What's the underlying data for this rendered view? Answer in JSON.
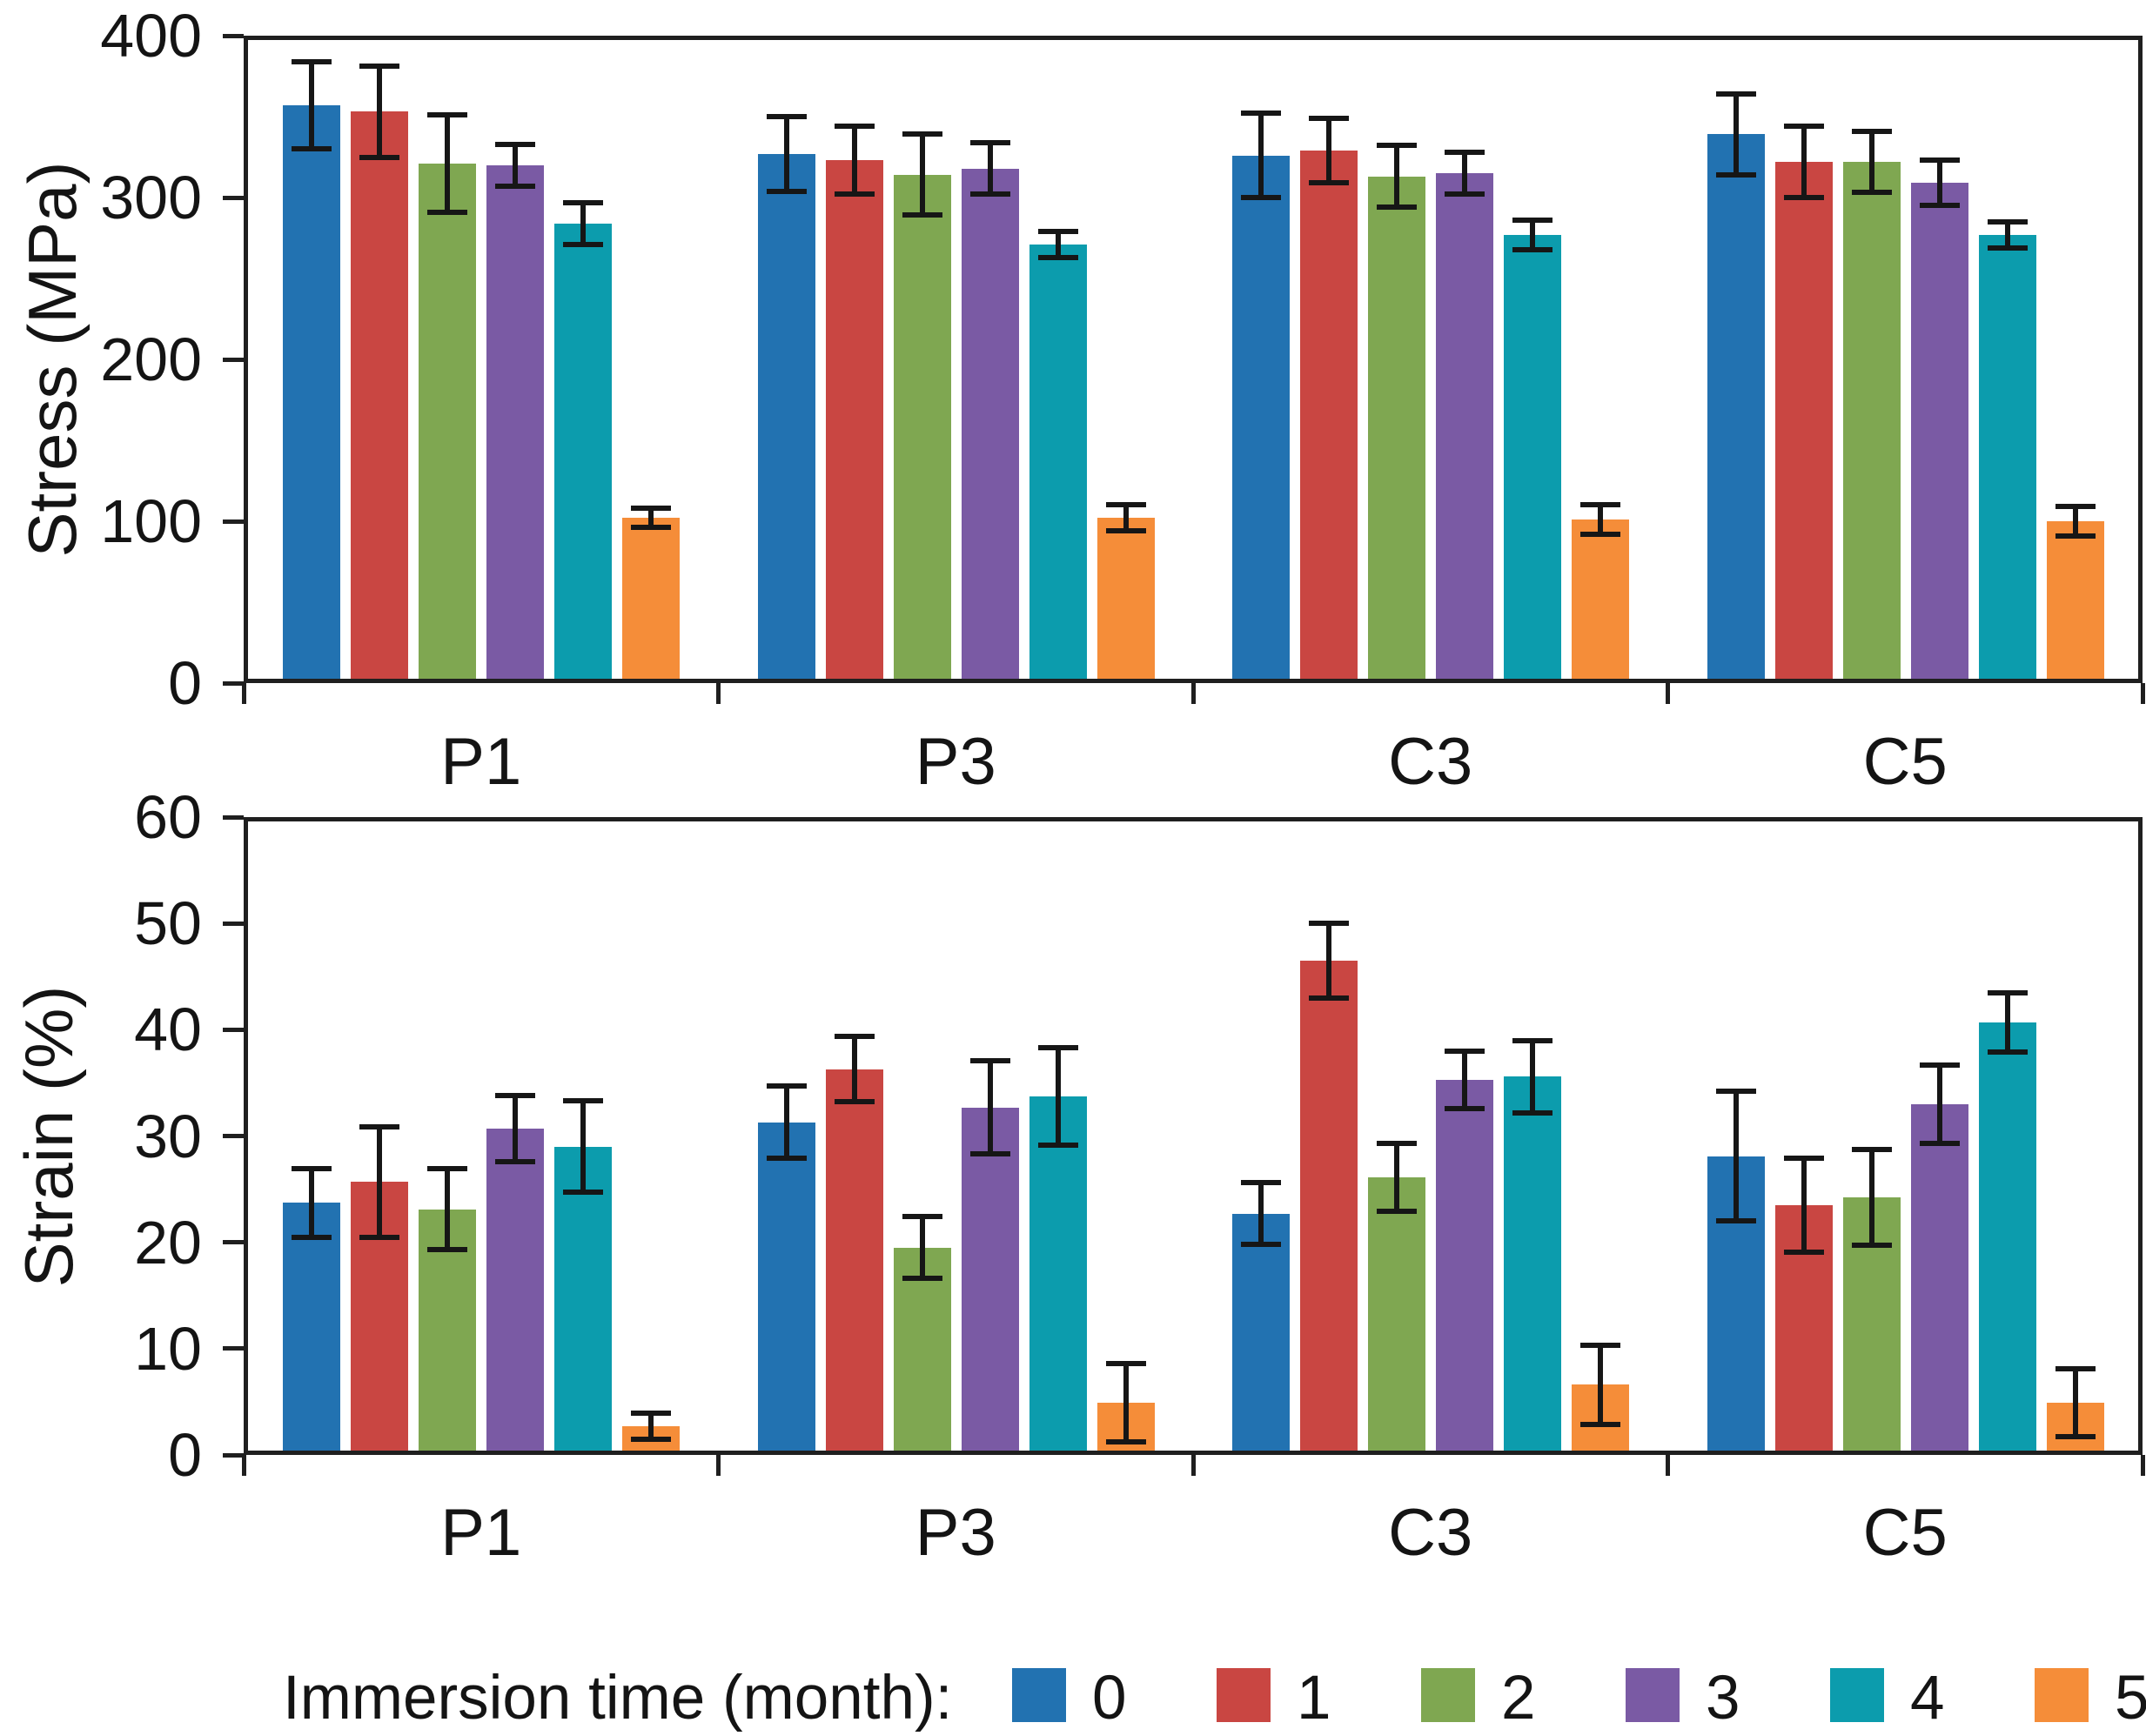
{
  "figure": {
    "background": "#ffffff",
    "axis_color": "#1f1f1f",
    "error_bar_color": "#161616"
  },
  "legend": {
    "title": "Immersion time (month):",
    "entries": [
      {
        "label": "0",
        "color": "#2272B1"
      },
      {
        "label": "1",
        "color": "#C94642"
      },
      {
        "label": "2",
        "color": "#7FA751"
      },
      {
        "label": "3",
        "color": "#7A5AA4"
      },
      {
        "label": "4",
        "color": "#0C9CAD"
      },
      {
        "label": "5",
        "color": "#F58D39"
      }
    ]
  },
  "chart_data": [
    {
      "type": "bar",
      "title": "",
      "xlabel": "",
      "ylabel": "Stress (MPa)",
      "ylim": [
        0,
        400
      ],
      "yticks": [
        0,
        100,
        200,
        300,
        400
      ],
      "grid": false,
      "legend_position": "shared-bottom",
      "categories": [
        "P1",
        "P3",
        "C3",
        "C5"
      ],
      "series": [
        {
          "name": "0",
          "color": "#2272B1",
          "values": [
            357,
            327,
            326,
            339
          ],
          "errors": [
            27,
            23,
            26,
            25
          ]
        },
        {
          "name": "1",
          "color": "#C94642",
          "values": [
            353,
            323,
            329,
            322
          ],
          "errors": [
            28,
            21,
            20,
            22
          ]
        },
        {
          "name": "2",
          "color": "#7FA751",
          "values": [
            321,
            314,
            313,
            322
          ],
          "errors": [
            30,
            25,
            19,
            19
          ]
        },
        {
          "name": "3",
          "color": "#7A5AA4",
          "values": [
            320,
            318,
            315,
            309
          ],
          "errors": [
            13,
            16,
            13,
            14
          ]
        },
        {
          "name": "4",
          "color": "#0C9CAD",
          "values": [
            284,
            271,
            277,
            277
          ],
          "errors": [
            13,
            8,
            9,
            8
          ]
        },
        {
          "name": "5",
          "color": "#F58D39",
          "values": [
            102,
            102,
            101,
            100
          ],
          "errors": [
            6,
            8,
            9,
            9
          ]
        }
      ]
    },
    {
      "type": "bar",
      "title": "",
      "xlabel": "",
      "ylabel": "Strain (%)",
      "ylim": [
        0,
        60
      ],
      "yticks": [
        0,
        10,
        20,
        30,
        40,
        50,
        60
      ],
      "grid": false,
      "legend_position": "shared-bottom",
      "categories": [
        "P1",
        "P3",
        "C3",
        "C5"
      ],
      "series": [
        {
          "name": "0",
          "color": "#2272B1",
          "values": [
            23.7,
            31.3,
            22.7,
            28.1
          ],
          "errors": [
            3.2,
            3.4,
            2.9,
            6.1
          ]
        },
        {
          "name": "1",
          "color": "#C94642",
          "values": [
            25.7,
            36.3,
            46.5,
            23.5
          ],
          "errors": [
            5.2,
            3.1,
            3.5,
            4.4
          ]
        },
        {
          "name": "2",
          "color": "#7FA751",
          "values": [
            23.1,
            19.5,
            26.1,
            24.2
          ],
          "errors": [
            3.8,
            2.9,
            3.2,
            4.5
          ]
        },
        {
          "name": "3",
          "color": "#7A5AA4",
          "values": [
            30.7,
            32.7,
            35.3,
            33.0
          ],
          "errors": [
            3.1,
            4.4,
            2.7,
            3.7
          ]
        },
        {
          "name": "4",
          "color": "#0C9CAD",
          "values": [
            29.0,
            33.7,
            35.6,
            40.7
          ],
          "errors": [
            4.3,
            4.6,
            3.4,
            2.8
          ]
        },
        {
          "name": "5",
          "color": "#F58D39",
          "values": [
            2.7,
            4.9,
            6.6,
            4.9
          ],
          "errors": [
            1.2,
            3.7,
            3.7,
            3.2
          ]
        }
      ]
    }
  ]
}
